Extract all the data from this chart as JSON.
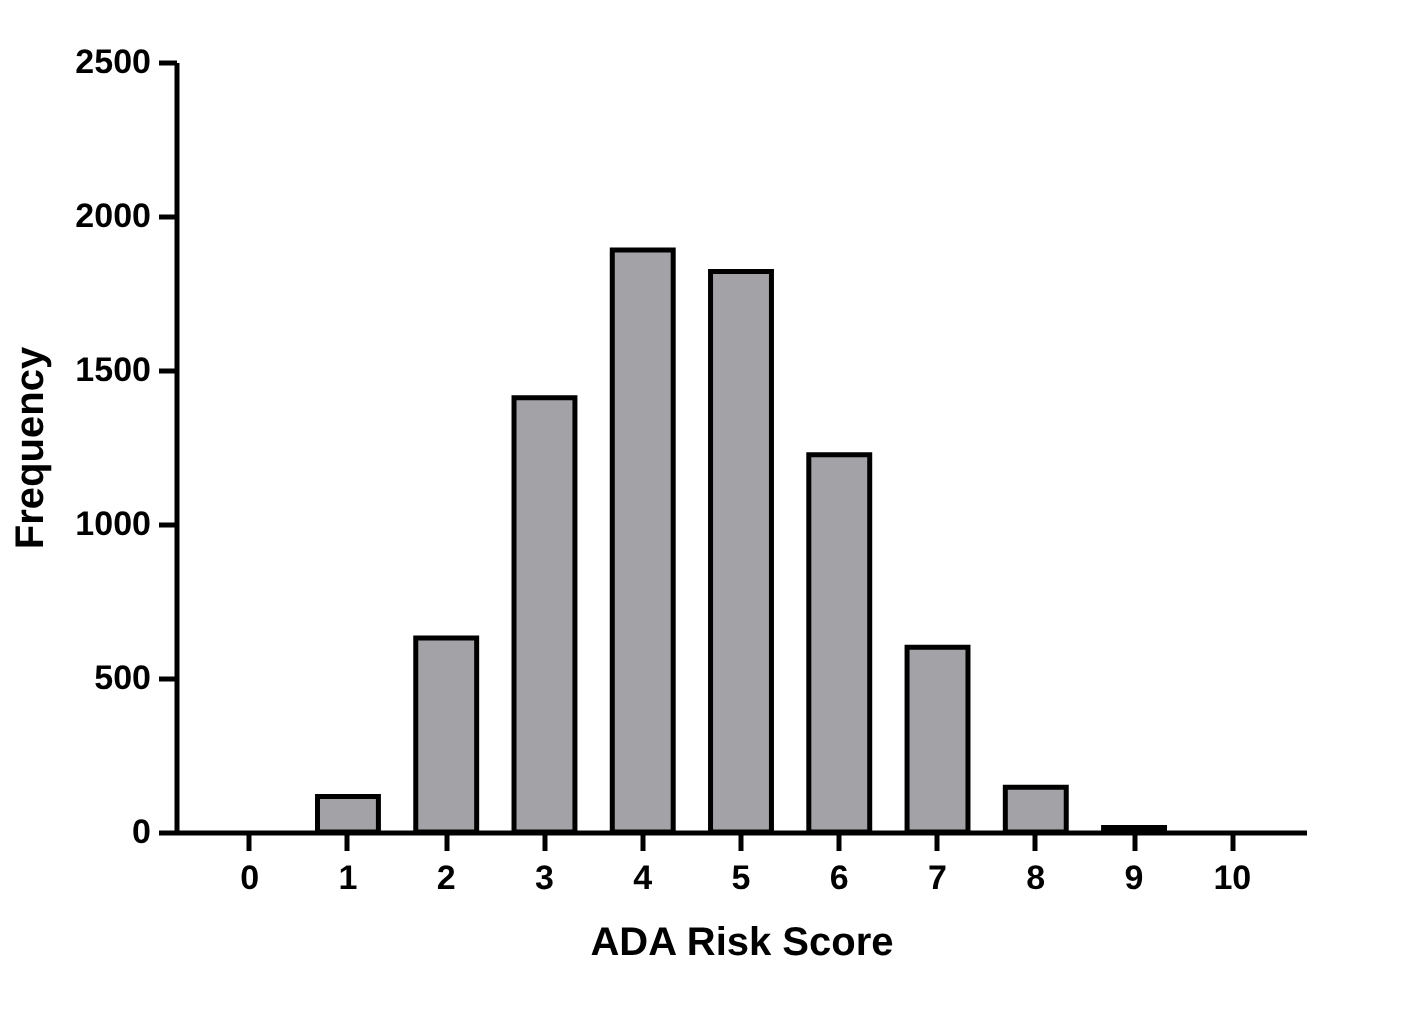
{
  "chart_data": {
    "type": "bar",
    "xlabel": "ADA Risk Score",
    "ylabel": "Frequency",
    "categories": [
      "0",
      "1",
      "2",
      "3",
      "4",
      "5",
      "6",
      "7",
      "8",
      "9",
      "10"
    ],
    "series": [
      {
        "color": "#a3a3a7",
        "values": [
          0,
          115,
          630,
          1410,
          1890,
          1820,
          1225,
          600,
          145,
          15,
          0
        ]
      }
    ],
    "ylim": [
      0,
      2500
    ],
    "yticks": [
      0,
      500,
      1000,
      1500,
      2000,
      2500
    ],
    "grid": false,
    "legend": false
  }
}
